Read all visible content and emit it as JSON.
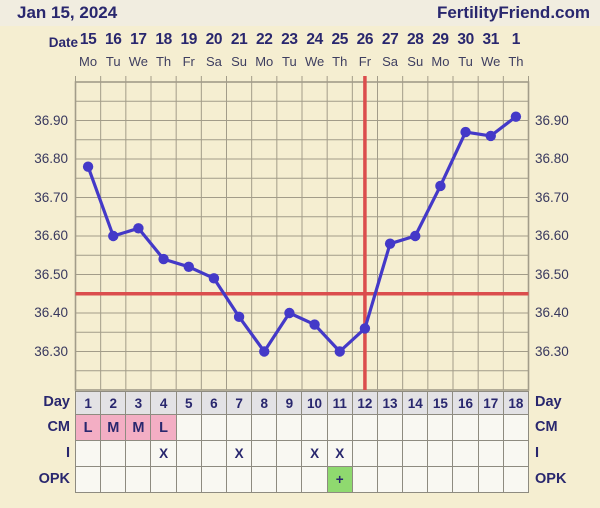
{
  "header": {
    "title": "Jan 15, 2024",
    "brand": "FertilityFriend.com"
  },
  "date_axis": {
    "label": "Date",
    "dates": [
      "15",
      "16",
      "17",
      "18",
      "19",
      "20",
      "21",
      "22",
      "23",
      "24",
      "25",
      "26",
      "27",
      "28",
      "29",
      "30",
      "31",
      "1"
    ],
    "weekdays": [
      "Mo",
      "Tu",
      "We",
      "Th",
      "Fr",
      "Sa",
      "Su",
      "Mo",
      "Tu",
      "We",
      "Th",
      "Fr",
      "Sa",
      "Su",
      "Mo",
      "Tu",
      "We",
      "Th"
    ]
  },
  "chart_data": {
    "type": "line",
    "title": "Basal body temperature chart (FertilityFriend)",
    "days": [
      1,
      2,
      3,
      4,
      5,
      6,
      7,
      8,
      9,
      10,
      11,
      12,
      13,
      14,
      15,
      16,
      17,
      18
    ],
    "temperatures": [
      36.78,
      36.6,
      36.62,
      36.54,
      36.52,
      36.49,
      36.39,
      36.3,
      36.4,
      36.37,
      36.3,
      36.36,
      36.58,
      36.6,
      36.73,
      36.87,
      36.86,
      36.91
    ],
    "ylim": [
      36.2,
      37.0
    ],
    "grid_step": 0.05,
    "y_tick_values": [
      36.9,
      36.8,
      36.7,
      36.6,
      36.5,
      36.4,
      36.3
    ],
    "y_tick_labels": [
      "36.90",
      "36.80",
      "36.70",
      "36.60",
      "36.50",
      "36.40",
      "36.30"
    ],
    "coverline_temp": 36.45,
    "ovulation_line_day": 12,
    "grid": "on",
    "legend": "none"
  },
  "table": {
    "rows": [
      {
        "label": "Day",
        "kind": "day",
        "values": [
          "1",
          "2",
          "3",
          "4",
          "5",
          "6",
          "7",
          "8",
          "9",
          "10",
          "11",
          "12",
          "13",
          "14",
          "15",
          "16",
          "17",
          "18"
        ]
      },
      {
        "label": "CM",
        "kind": "cm",
        "values": [
          "L",
          "M",
          "M",
          "L",
          "",
          "",
          "",
          "",
          "",
          "",
          "",
          "",
          "",
          "",
          "",
          "",
          "",
          ""
        ]
      },
      {
        "label": "I",
        "kind": "i",
        "values": [
          "",
          "",
          "",
          "X",
          "",
          "",
          "X",
          "",
          "",
          "X",
          "X",
          "",
          "",
          "",
          "",
          "",
          "",
          ""
        ]
      },
      {
        "label": "OPK",
        "kind": "opk",
        "values": [
          "",
          "",
          "",
          "",
          "",
          "",
          "",
          "",
          "",
          "",
          "+",
          "",
          "",
          "",
          "",
          "",
          "",
          ""
        ]
      }
    ]
  },
  "colors": {
    "background": "#f5eed1",
    "header_band": "#f1ede0",
    "text_navy": "#29276e",
    "axis_text": "#3e3e60",
    "grid": "#a29c89",
    "temp_line_purple": "#4439c8",
    "signal_red": "#db4d4d",
    "day_cell_gray": "#e3e2e5",
    "cm_pink": "#f3aec4",
    "opk_green": "#8fd96f",
    "empty_cell": "#f9f8f2",
    "cell_border": "#8e8b80"
  }
}
